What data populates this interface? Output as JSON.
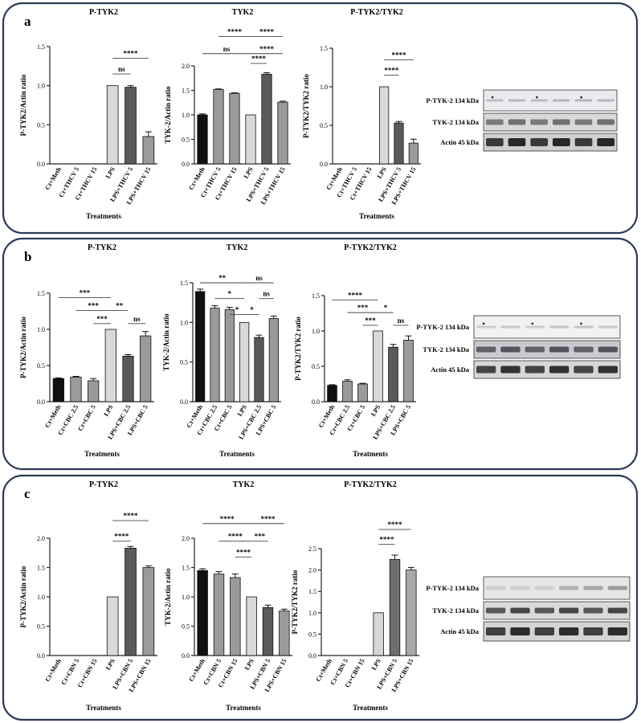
{
  "panels": [
    {
      "label": "a",
      "charts": [
        {
          "title": "P-TYK2",
          "type": "bar",
          "ylabel": "P-TYK2/Actin ratio",
          "xlabel": "Treatments",
          "ylim": [
            0,
            1.5
          ],
          "yticks": [
            "0.0",
            "0.5",
            "1.0",
            "1.5"
          ],
          "categories": [
            "Ct+Meth",
            "Ct+THCV 5",
            "Ct+THCV 15",
            "LPS",
            "LPS+THCV 5",
            "LPS+THCV 15"
          ],
          "values": [
            0,
            0,
            0,
            1.0,
            0.98,
            0.35
          ],
          "errors": [
            0,
            0,
            0,
            0,
            0.02,
            0.06
          ],
          "colors": [
            "#111111",
            "#9a9a9a",
            "#9a9a9a",
            "#d9d9d9",
            "#5a5a5a",
            "#9a9a9a"
          ],
          "sig": [
            {
              "from": 3,
              "to": 4,
              "y": 1.15,
              "text": "ns"
            },
            {
              "from": 3,
              "to": 5,
              "y": 1.35,
              "text": "****"
            }
          ]
        },
        {
          "title": "TYK2",
          "type": "bar",
          "ylabel": "TYK-2/Actin ratio",
          "xlabel": "",
          "ylim": [
            0,
            2.0
          ],
          "yticks": [
            "0.0",
            "0.5",
            "1.0",
            "1.5",
            "2.0"
          ],
          "categories": [
            "Ct+Meth",
            "Ct+THCV 5",
            "Ct+THCV 15",
            "LPS",
            "LPS+THCV 5",
            "LPS+THCV 15"
          ],
          "values": [
            1.0,
            1.52,
            1.44,
            1.0,
            1.83,
            1.26
          ],
          "errors": [
            0.02,
            0.01,
            0.01,
            0,
            0.03,
            0.02
          ],
          "colors": [
            "#111111",
            "#9a9a9a",
            "#9a9a9a",
            "#d9d9d9",
            "#5a5a5a",
            "#9a9a9a"
          ],
          "sig": [
            {
              "from": 3,
              "to": 4,
              "y": 2.05,
              "text": "****"
            },
            {
              "from": 0,
              "to": 3,
              "y": 2.25,
              "text": "ns"
            },
            {
              "from": 3,
              "to": 5,
              "y": 2.25,
              "text": "****"
            },
            {
              "from": 1,
              "to": 3,
              "y": 2.6,
              "text": "****"
            },
            {
              "from": 3,
              "to": 5,
              "y": 2.6,
              "text": "****"
            }
          ]
        },
        {
          "title": "P-TYK2/TYK2",
          "type": "bar",
          "ylabel": "P-TYK2/TYK2 ratio",
          "xlabel": "Treatments",
          "ylim": [
            0,
            1.5
          ],
          "yticks": [
            "0.0",
            "0.5",
            "1.0",
            "1.5"
          ],
          "categories": [
            "Ct+Meth",
            "Ct+THCV 5",
            "Ct+THCV 15",
            "LPS",
            "LPS+THCV 5",
            "LPS+THCV 15"
          ],
          "values": [
            0,
            0,
            0,
            1.0,
            0.53,
            0.27
          ],
          "errors": [
            0,
            0,
            0,
            0,
            0.02,
            0.05
          ],
          "colors": [
            "#111111",
            "#9a9a9a",
            "#9a9a9a",
            "#d9d9d9",
            "#5a5a5a",
            "#9a9a9a"
          ],
          "sig": [
            {
              "from": 3,
              "to": 4,
              "y": 1.15,
              "text": "****"
            },
            {
              "from": 3,
              "to": 5,
              "y": 1.35,
              "text": "****"
            }
          ]
        }
      ],
      "blot_labels": [
        "P-TYK-2 134 kDa",
        "TYK-2 134 kDa",
        "Actin 45 kDa"
      ]
    },
    {
      "label": "b",
      "charts": [
        {
          "title": "P-TYK2",
          "type": "bar",
          "ylabel": "P-TYK2/Actin ratio",
          "xlabel": "Treatments",
          "ylim": [
            0,
            1.5
          ],
          "yticks": [
            "0.0",
            "0.5",
            "1.0",
            "1.5"
          ],
          "categories": [
            "Ct+Meth",
            "Ct+CBC 2.5",
            "Ct+CBC 5",
            "LPS",
            "LPS+CBC 2.5",
            "LPS+CBC 5"
          ],
          "values": [
            0.32,
            0.34,
            0.29,
            1.0,
            0.63,
            0.91
          ],
          "errors": [
            0.01,
            0.01,
            0.03,
            0,
            0.02,
            0.06
          ],
          "colors": [
            "#111111",
            "#9a9a9a",
            "#9a9a9a",
            "#d9d9d9",
            "#5a5a5a",
            "#9a9a9a"
          ],
          "sig": [
            {
              "from": 2,
              "to": 3,
              "y": 1.08,
              "text": "***"
            },
            {
              "from": 4,
              "to": 5,
              "y": 1.08,
              "text": "ns"
            },
            {
              "from": 1,
              "to": 3,
              "y": 1.26,
              "text": "***"
            },
            {
              "from": 3,
              "to": 4,
              "y": 1.26,
              "text": "**"
            },
            {
              "from": 0,
              "to": 3,
              "y": 1.44,
              "text": "***"
            }
          ]
        },
        {
          "title": "TYK2",
          "type": "bar",
          "ylabel": "TYK-2/Actin ratio",
          "xlabel": "Treatments",
          "ylim": [
            0,
            1.5
          ],
          "yticks": [
            "0.0",
            "0.5",
            "1.0",
            "1.5"
          ],
          "categories": [
            "Ct+Meth",
            "Ct+CBC 2.5",
            "Ct+CBC 5",
            "LPS",
            "LPS+CBC 2.5",
            "LPS+CBC 5"
          ],
          "values": [
            1.39,
            1.18,
            1.16,
            1.0,
            0.81,
            1.05
          ],
          "errors": [
            0.03,
            0.03,
            0.03,
            0,
            0.03,
            0.03
          ],
          "colors": [
            "#111111",
            "#9a9a9a",
            "#9a9a9a",
            "#d9d9d9",
            "#5a5a5a",
            "#9a9a9a"
          ],
          "sig": [
            {
              "from": 2,
              "to": 3,
              "y": 1.1,
              "text": "*"
            },
            {
              "from": 3,
              "to": 4,
              "y": 1.1,
              "text": "*"
            },
            {
              "from": 1,
              "to": 3,
              "y": 1.3,
              "text": "*"
            },
            {
              "from": 4,
              "to": 5,
              "y": 1.3,
              "text": "ns"
            },
            {
              "from": 0,
              "to": 3,
              "y": 1.5,
              "text": "**"
            },
            {
              "from": 3,
              "to": 5,
              "y": 1.5,
              "text": "ns"
            }
          ]
        },
        {
          "title": "P-TYK2/TYK2",
          "type": "bar",
          "ylabel": "P-TYK2/TYK2 ratio",
          "xlabel": "Treatments",
          "ylim": [
            0,
            1.5
          ],
          "yticks": [
            "0.0",
            "0.5",
            "1.0",
            "1.5"
          ],
          "categories": [
            "Ct+Meth",
            "Ct+CBC 2.5",
            "Ct+CBC 5",
            "LPS",
            "LPS+CBC 2.5",
            "LPS+CBC 5"
          ],
          "values": [
            0.23,
            0.29,
            0.25,
            1.0,
            0.77,
            0.87
          ],
          "errors": [
            0.01,
            0.02,
            0.01,
            0,
            0.04,
            0.06
          ],
          "colors": [
            "#111111",
            "#9a9a9a",
            "#9a9a9a",
            "#d9d9d9",
            "#5a5a5a",
            "#9a9a9a"
          ],
          "sig": [
            {
              "from": 2,
              "to": 3,
              "y": 1.08,
              "text": "***"
            },
            {
              "from": 4,
              "to": 5,
              "y": 1.08,
              "text": "ns"
            },
            {
              "from": 1,
              "to": 3,
              "y": 1.26,
              "text": "***"
            },
            {
              "from": 3,
              "to": 4,
              "y": 1.26,
              "text": "*"
            },
            {
              "from": 0,
              "to": 3,
              "y": 1.44,
              "text": "****"
            }
          ]
        }
      ],
      "blot_labels": [
        "P-TYK-2 134 kDa",
        "TYK-2 134 kDa",
        "Actin 45 kDa"
      ]
    },
    {
      "label": "c",
      "charts": [
        {
          "title": "P-TYK2",
          "type": "bar",
          "ylabel": "P-TYK2/Actin ratio",
          "xlabel": "Treatments",
          "ylim": [
            0,
            2.0
          ],
          "yticks": [
            "0.0",
            "0.5",
            "1.0",
            "1.5",
            "2.0"
          ],
          "categories": [
            "Ct+Meth",
            "Ct+CBN 5",
            "Ct+CBN 15",
            "LPS",
            "LPS+CBN 5",
            "LPS+CBN 15"
          ],
          "values": [
            0,
            0,
            0,
            1.0,
            1.83,
            1.5
          ],
          "errors": [
            0,
            0,
            0,
            0,
            0.03,
            0.03
          ],
          "colors": [
            "#111111",
            "#9a9a9a",
            "#9a9a9a",
            "#d9d9d9",
            "#5a5a5a",
            "#9a9a9a"
          ],
          "sig": [
            {
              "from": 3,
              "to": 4,
              "y": 1.95,
              "text": "****"
            },
            {
              "from": 3,
              "to": 5,
              "y": 2.3,
              "text": "****"
            }
          ]
        },
        {
          "title": "TYK2",
          "type": "bar",
          "ylabel": "TYK-2/Actin ratio",
          "xlabel": "Treatments",
          "ylim": [
            0,
            2.0
          ],
          "yticks": [
            "0.0",
            "0.5",
            "1.0",
            "1.5",
            "2.0"
          ],
          "categories": [
            "Ct+Meth",
            "Ct+CBN 5",
            "Ct+CBN 15",
            "LPS",
            "LPS+CBN 5",
            "LPS+CBN 15"
          ],
          "values": [
            1.45,
            1.39,
            1.33,
            1.0,
            0.82,
            0.76
          ],
          "errors": [
            0.03,
            0.04,
            0.06,
            0,
            0.04,
            0.03
          ],
          "colors": [
            "#111111",
            "#9a9a9a",
            "#9a9a9a",
            "#d9d9d9",
            "#5a5a5a",
            "#9a9a9a"
          ],
          "sig": [
            {
              "from": 2,
              "to": 3,
              "y": 1.68,
              "text": "****"
            },
            {
              "from": 1,
              "to": 3,
              "y": 1.95,
              "text": "****"
            },
            {
              "from": 3,
              "to": 4,
              "y": 1.95,
              "text": "***"
            },
            {
              "from": 0,
              "to": 3,
              "y": 2.25,
              "text": "****"
            },
            {
              "from": 3,
              "to": 5,
              "y": 2.25,
              "text": "****"
            }
          ]
        },
        {
          "title": "P-TYK2/TYK2",
          "type": "bar",
          "ylabel": "P-TYK2/TYK2 ratio",
          "xlabel": "Treatments",
          "ylim": [
            0,
            2.5
          ],
          "yticks": [
            "0.0",
            "0.5",
            "1.0",
            "1.5",
            "2.0",
            "2.5"
          ],
          "categories": [
            "Ct+Meth",
            "Ct+CBN 5",
            "Ct+CBN 15",
            "LPS",
            "LPS+CBN 5",
            "LPS+CBN 15"
          ],
          "values": [
            0,
            0,
            0,
            1.0,
            2.25,
            2.0
          ],
          "errors": [
            0,
            0,
            0,
            0,
            0.1,
            0.06
          ],
          "colors": [
            "#111111",
            "#bdbdbd",
            "#bdbdbd",
            "#d6d6d6",
            "#6e6e6e",
            "#a8a8a8"
          ],
          "sig": [
            {
              "from": 3,
              "to": 4,
              "y": 2.6,
              "text": "****"
            },
            {
              "from": 3,
              "to": 5,
              "y": 2.95,
              "text": "****"
            }
          ]
        }
      ],
      "blot_labels": [
        "P-TYK-2 134 kDa",
        "TYK-2 134 kDa",
        "Actin 45 kDa"
      ]
    }
  ]
}
